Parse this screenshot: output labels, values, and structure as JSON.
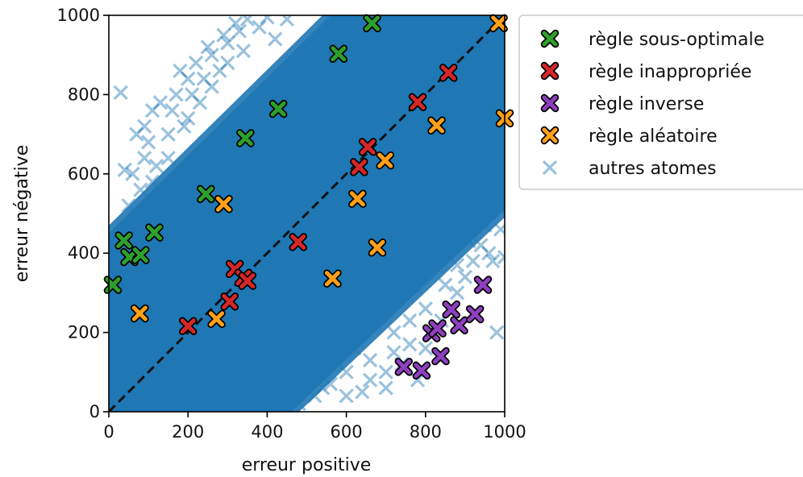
{
  "chart_data": {
    "type": "scatter",
    "title": "",
    "xlabel": "erreur positive",
    "ylabel": "erreur négative",
    "xlim": [
      0,
      1000
    ],
    "ylim": [
      0,
      1000
    ],
    "xticks": [
      "0",
      "200",
      "400",
      "600",
      "800",
      "1000"
    ],
    "yticks": [
      "0",
      "200",
      "400",
      "600",
      "800",
      "1000"
    ],
    "grid": false,
    "legend_position": "outside-upper-right",
    "diagonal_reference": {
      "from": [
        0,
        0
      ],
      "to": [
        1000,
        1000
      ],
      "style": "dashed",
      "color": "#111111"
    },
    "background_cloud": {
      "name": "autres atomes",
      "color": "#1f77b4",
      "dense_band_polygon": [
        [
          0,
          450
        ],
        [
          0,
          0
        ],
        [
          460,
          0
        ],
        [
          1000,
          510
        ],
        [
          1000,
          1000
        ],
        [
          560,
          1000
        ]
      ],
      "scattered_points": [
        [
          30,
          805
        ],
        [
          40,
          610
        ],
        [
          60,
          600
        ],
        [
          70,
          700
        ],
        [
          90,
          640
        ],
        [
          100,
          680
        ],
        [
          110,
          760
        ],
        [
          130,
          780
        ],
        [
          150,
          700
        ],
        [
          160,
          760
        ],
        [
          170,
          800
        ],
        [
          180,
          860
        ],
        [
          190,
          720
        ],
        [
          200,
          840
        ],
        [
          210,
          800
        ],
        [
          220,
          880
        ],
        [
          230,
          780
        ],
        [
          240,
          840
        ],
        [
          250,
          920
        ],
        [
          260,
          900
        ],
        [
          280,
          860
        ],
        [
          290,
          950
        ],
        [
          300,
          930
        ],
        [
          320,
          980
        ],
        [
          330,
          960
        ],
        [
          350,
          990
        ],
        [
          380,
          970
        ],
        [
          400,
          995
        ],
        [
          420,
          940
        ],
        [
          450,
          990
        ],
        [
          150,
          640
        ],
        [
          120,
          620
        ],
        [
          200,
          740
        ],
        [
          260,
          820
        ],
        [
          300,
          880
        ],
        [
          340,
          910
        ],
        [
          80,
          560
        ],
        [
          50,
          520
        ],
        [
          110,
          580
        ],
        [
          90,
          720
        ],
        [
          480,
          20
        ],
        [
          520,
          40
        ],
        [
          540,
          60
        ],
        [
          560,
          70
        ],
        [
          600,
          40
        ],
        [
          640,
          50
        ],
        [
          660,
          80
        ],
        [
          700,
          100
        ],
        [
          720,
          150
        ],
        [
          740,
          120
        ],
        [
          760,
          170
        ],
        [
          780,
          80
        ],
        [
          790,
          110
        ],
        [
          800,
          160
        ],
        [
          820,
          200
        ],
        [
          840,
          230
        ],
        [
          860,
          260
        ],
        [
          880,
          300
        ],
        [
          900,
          340
        ],
        [
          920,
          380
        ],
        [
          940,
          420
        ],
        [
          960,
          400
        ],
        [
          970,
          380
        ],
        [
          980,
          200
        ],
        [
          990,
          460
        ],
        [
          1000,
          390
        ],
        [
          600,
          100
        ],
        [
          660,
          130
        ],
        [
          700,
          60
        ],
        [
          720,
          200
        ],
        [
          760,
          230
        ],
        [
          800,
          260
        ],
        [
          850,
          320
        ],
        [
          880,
          370
        ],
        [
          910,
          430
        ],
        [
          950,
          470
        ],
        [
          980,
          520
        ],
        [
          990,
          560
        ],
        [
          1000,
          600
        ],
        [
          620,
          160
        ]
      ]
    },
    "series": [
      {
        "name": "règle sous-optimale",
        "color": "#2ca02c",
        "points": [
          [
            10,
            320
          ],
          [
            38,
            432
          ],
          [
            52,
            390
          ],
          [
            80,
            395
          ],
          [
            115,
            452
          ],
          [
            245,
            549
          ],
          [
            345,
            690
          ],
          [
            428,
            764
          ],
          [
            580,
            903
          ],
          [
            665,
            980
          ]
        ]
      },
      {
        "name": "règle inappropriée",
        "color": "#d62728",
        "points": [
          [
            200,
            216
          ],
          [
            305,
            278
          ],
          [
            318,
            360
          ],
          [
            340,
            338
          ],
          [
            350,
            330
          ],
          [
            478,
            428
          ],
          [
            632,
            617
          ],
          [
            654,
            668
          ],
          [
            780,
            781
          ],
          [
            858,
            855
          ]
        ]
      },
      {
        "name": "règle inverse",
        "color": "#8e3fbf",
        "points": [
          [
            745,
            113
          ],
          [
            790,
            104
          ],
          [
            815,
            198
          ],
          [
            830,
            210
          ],
          [
            838,
            140
          ],
          [
            865,
            258
          ],
          [
            885,
            218
          ],
          [
            925,
            246
          ],
          [
            945,
            320
          ]
        ]
      },
      {
        "name": "règle aléatoire",
        "color": "#ff9f1a",
        "points": [
          [
            78,
            248
          ],
          [
            272,
            234
          ],
          [
            290,
            524
          ],
          [
            565,
            336
          ],
          [
            628,
            537
          ],
          [
            678,
            414
          ],
          [
            698,
            634
          ],
          [
            828,
            722
          ],
          [
            985,
            980
          ],
          [
            1000,
            740
          ]
        ]
      }
    ],
    "legend": [
      {
        "label": "règle sous-optimale",
        "color": "#2ca02c",
        "marker": "x-bordered"
      },
      {
        "label": "règle inappropriée",
        "color": "#d62728",
        "marker": "x-bordered"
      },
      {
        "label": "règle inverse",
        "color": "#8e3fbf",
        "marker": "x-bordered"
      },
      {
        "label": "règle aléatoire",
        "color": "#ff9f1a",
        "marker": "x-bordered"
      },
      {
        "label": "autres atomes",
        "color": "#1f77b4",
        "marker": "x-thin"
      }
    ]
  }
}
